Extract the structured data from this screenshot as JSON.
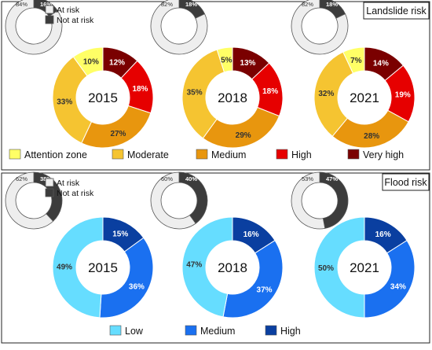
{
  "chart_data": [
    {
      "type": "pie",
      "title": "Landslide risk",
      "legend_position": "bottom",
      "categories": [
        "Attention zone",
        "Moderate",
        "Medium",
        "High",
        "Very high"
      ],
      "colors": [
        "#ffff66",
        "#f5c431",
        "#e8960e",
        "#e60000",
        "#7a0000"
      ],
      "series": [
        {
          "name": "2015",
          "values": [
            10,
            33,
            27,
            18,
            12
          ]
        },
        {
          "name": "2018",
          "values": [
            5,
            35,
            29,
            18,
            13
          ]
        },
        {
          "name": "2021",
          "values": [
            7,
            32,
            28,
            19,
            14
          ]
        }
      ],
      "risk_legend": {
        "categories": [
          "At risk",
          "Not at risk"
        ],
        "colors": [
          "#eeeeee",
          "#3c3c3c"
        ]
      },
      "risk_series": [
        {
          "name": "2015",
          "values": [
            84,
            16
          ]
        },
        {
          "name": "2018",
          "values": [
            82,
            18
          ]
        },
        {
          "name": "2021",
          "values": [
            82,
            18
          ]
        }
      ]
    },
    {
      "type": "pie",
      "title": "Flood risk",
      "legend_position": "bottom",
      "categories": [
        "Low",
        "Medium",
        "High"
      ],
      "colors": [
        "#66ddff",
        "#1a70f0",
        "#0a3fa0"
      ],
      "series": [
        {
          "name": "2015",
          "values": [
            49,
            36,
            15
          ]
        },
        {
          "name": "2018",
          "values": [
            47,
            37,
            16
          ]
        },
        {
          "name": "2021",
          "values": [
            50,
            34,
            16
          ]
        }
      ],
      "risk_legend": {
        "categories": [
          "At risk",
          "Not at risk"
        ],
        "colors": [
          "#eeeeee",
          "#3c3c3c"
        ]
      },
      "risk_series": [
        {
          "name": "2015",
          "values": [
            62,
            38
          ]
        },
        {
          "name": "2018",
          "values": [
            60,
            40
          ]
        },
        {
          "name": "2021",
          "values": [
            53,
            47
          ]
        }
      ]
    }
  ]
}
